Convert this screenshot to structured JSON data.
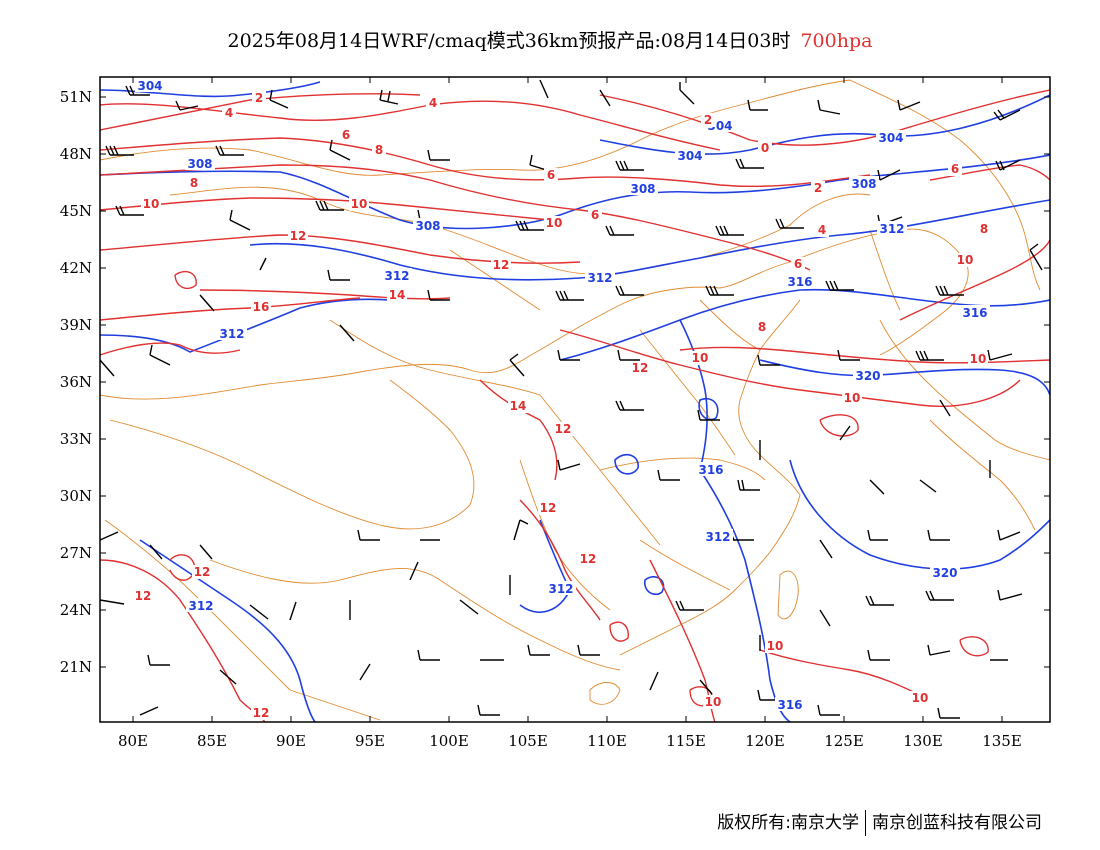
{
  "title": {
    "main": "2025年08月14日WRF/cmaq模式36km预报产品:08月14日03时",
    "level": "700hpa",
    "level_color": "#e03030"
  },
  "map": {
    "lon_ticks": [
      "80E",
      "85E",
      "90E",
      "95E",
      "100E",
      "105E",
      "110E",
      "115E",
      "120E",
      "125E",
      "130E",
      "135E"
    ],
    "lat_ticks": [
      "51N",
      "48N",
      "45N",
      "42N",
      "39N",
      "36N",
      "33N",
      "30N",
      "27N",
      "24N",
      "21N"
    ],
    "colors": {
      "height_contour": "#1f3fe0",
      "temperature_contour": "#e03030",
      "boundary": "#e08a30",
      "wind_barb": "#000000"
    },
    "height_labels": [
      "304",
      "308",
      "312",
      "316",
      "320"
    ],
    "temperature_labels": [
      "0",
      "2",
      "4",
      "6",
      "8",
      "10",
      "12",
      "14",
      "16"
    ]
  },
  "copyright": {
    "owner": "版权所有:",
    "university": "南京大学",
    "company": "南京创蓝科技有限公司"
  }
}
